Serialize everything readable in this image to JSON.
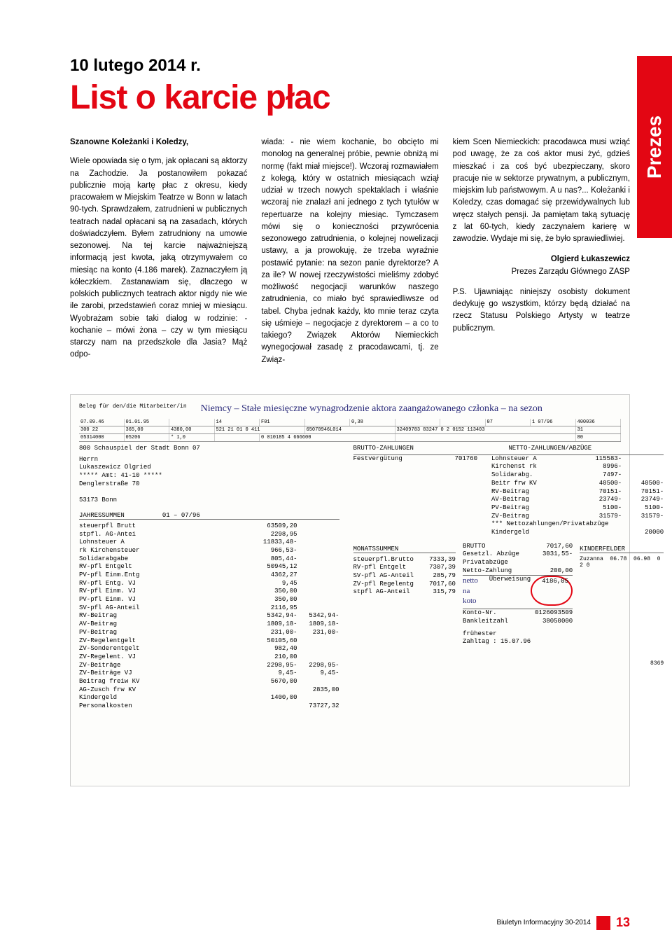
{
  "side_tab": "Prezes",
  "date_line": "10 lutego 2014 r.",
  "main_title": "List o karcie płac",
  "salutation": "Szanowne Koleżanki i Koledzy,",
  "col1_p1": "Wiele opowiada się o tym, jak opłacani są aktorzy na Zachodzie. Ja postanowiłem pokazać publicznie moją kartę płac z okresu, kiedy pracowałem w Miejskim Teatrze w Bonn w latach 90-tych. Sprawdzałem, zatrudnieni w publicznych teatrach nadal opłacani są na zasadach, których doświadczyłem. Byłem zatrudniony na umowie sezonowej. Na tej karcie najważniejszą informacją jest kwota, jaką otrzymywałem co miesiąc na konto (4.186 marek). Zaznaczyłem ją kółeczkiem. Zastanawiam się, dlaczego w polskich publicznych teatrach aktor nigdy nie wie ile zarobi, przedstawień coraz mniej w miesiącu. Wyobrażam sobie taki dialog w rodzinie: - kochanie – mówi żona – czy w tym miesiącu starczy nam na przedszkole dla Jasia? Mąż odpo-",
  "col2_p1": "wiada: - nie wiem kochanie, bo obcięto mi monolog na generalnej próbie, pewnie obniżą mi normę (fakt miał miejsce!). Wczoraj rozmawiałem z kolegą, który w ostatnich miesiącach wziął udział w trzech nowych spektaklach i właśnie wczoraj nie znalazł ani jednego z tych tytułów w repertuarze na kolejny miesiąc. Tymczasem mówi się o konieczności przywrócenia sezonowego zatrudnienia, o kolejnej nowelizacji ustawy, a ja prowokuję, że trzeba wyraźnie postawić pytanie: na sezon panie dyrektorze? A za ile? W nowej rzeczywistości mieliśmy zdobyć możliwość negocjacji warunków naszego zatrudnienia, co miało być sprawiedliwsze od tabel. Chyba jednak każdy, kto mnie teraz czyta się uśmieje – negocjacje z dyrektorem – a co to takiego? Związek Aktorów Niemieckich wynegocjował zasadę z pracodawcami, tj. ze Związ-",
  "col3_p1": "kiem Scen Niemieckich: pracodawca musi wziąć pod uwagę, że za coś aktor musi żyć, gdzieś mieszkać i za coś być ubezpieczany, skoro pracuje nie w sektorze prywatnym, a publicznym, miejskim lub państwowym. A u nas?... Koleżanki i Koledzy, czas domagać się przewidywalnych lub wręcz stałych pensji. Ja pamiętam taką sytuację z lat 60-tych, kiedy zaczynałem karierę w zawodzie. Wydaje mi się, że było sprawiedliwiej.",
  "signature_name": "Olgierd Łukaszewicz",
  "signature_title": "Prezes Zarządu Głównego ZASP",
  "ps": "P.S. Ujawniając niniejszy osobisty dokument dedykuję go wszystkim, którzy będą działać na rzecz Statusu Polskiego Artysty w teatrze publicznym.",
  "payslip": {
    "handwriting": "Niemcy – Stałe miesięczne wynagrodzenie aktora zaangażowanego członka – na sezon",
    "beleg_label": "Beleg für den/die Mitarbeiter/in",
    "header1": {
      "geburtsdatum": "07.09.46",
      "eintritt": "01.01.95",
      "part": "14",
      "f01": "F01",
      "faktor": "0,38",
      "kz": "07",
      "monat": "1 07/96",
      "personal": "400036"
    },
    "header2": {
      "konf": "300 22",
      "monat": "365,00",
      "jahres": "4380,00",
      "schl": "521 21 01 0 411",
      "sozvers": "65070946L014",
      "betrieb": "32409783 83247 0 2 0152 113403",
      "st": "31"
    },
    "header3": {
      "finanzamt": "05314000",
      "steuerklasse": "05206",
      "kinder": "* 1,0",
      "mk": "0 010185 4 666600",
      "sv": "80",
      "zv": "31"
    },
    "employer": "800 Schauspiel der Stadt Bonn    07",
    "brutto_title": "BRUTTO-ZAHLUNGEN",
    "netto_title": "NETTO-ZAHLUNGEN/ABZÜGE",
    "festverguetung_label": "Festvergütung",
    "festverguetung_val": "701760",
    "address": {
      "l1": "Herrn",
      "l2": "Lukaszewicz Olgried",
      "l3": "*****   Amt: 41-10   *****",
      "l4": "Denglerstraße 70",
      "l5": "53173 Bonn"
    },
    "netto_items": [
      {
        "label": "Lohnsteuer A",
        "v1": "115583-"
      },
      {
        "label": "Kirchenst rk",
        "v1": "8996-"
      },
      {
        "label": "Solidarabg.",
        "v1": "7497-"
      },
      {
        "label": "Beitr frw KV",
        "v1": "40500-",
        "v2": "40500-"
      },
      {
        "label": "RV-Beitrag",
        "v1": "70151-",
        "v2": "70151-"
      },
      {
        "label": "AV-Beitrag",
        "v1": "23749-",
        "v2": "23749-"
      },
      {
        "label": "PV-Beitrag",
        "v1": "5100-",
        "v2": "5100-"
      },
      {
        "label": "ZV-Beitrag",
        "v1": "31579-",
        "v2": "31579-"
      }
    ],
    "nettoz_label": "*** Nettozahlungen/Privatabzüge",
    "kindergeld_label": "Kindergeld",
    "kindergeld_val": "20000",
    "jahressummen_title": "JAHRESSUMMEN",
    "jahressummen_period": "01 – 07/96",
    "jahres_items": [
      {
        "label": "steuerpfl Brutt",
        "v1": "63509,20"
      },
      {
        "label": "stpfl. AG-Antei",
        "v1": "2298,95"
      },
      {
        "label": "Lohnsteuer A",
        "v1": "11833,48-"
      },
      {
        "label": "rk Kirchensteuer",
        "v1": "966,53-"
      },
      {
        "label": "Solidarabgabe",
        "v1": "805,44-"
      },
      {
        "label": "RV-pfl Entgelt",
        "v1": "50945,12"
      },
      {
        "label": "PV-pfl Einm.Entg",
        "v1": "4362,27"
      },
      {
        "label": "RV-pfl Entg. VJ",
        "v1": "9,45"
      },
      {
        "label": "RV-pfl Einm. VJ",
        "v1": "350,00"
      },
      {
        "label": "PV-pfl Einm. VJ",
        "v1": "350,00"
      },
      {
        "label": "SV-pfl AG-Anteil",
        "v1": "2116,95"
      },
      {
        "label": "RV-Beitrag",
        "v1": "5342,94-",
        "v2": "5342,94-"
      },
      {
        "label": "AV-Beitrag",
        "v1": "1809,18-",
        "v2": "1809,18-"
      },
      {
        "label": "PV-Beitrag",
        "v1": "231,00-",
        "v2": "231,00-"
      },
      {
        "label": "ZV-Regelentgelt",
        "v1": "50105,60"
      },
      {
        "label": "ZV-Sonderentgelt",
        "v1": "982,40"
      },
      {
        "label": "ZV-Regelent. VJ",
        "v1": "210,00"
      },
      {
        "label": "ZV-Beiträge",
        "v1": "2298,95-",
        "v2": "2298,95-"
      },
      {
        "label": "ZV-Beiträge VJ",
        "v1": "9,45-",
        "v2": "9,45-"
      },
      {
        "label": "Beitrag freiw KV",
        "v1": "5670,00"
      },
      {
        "label": "AG-Zusch frw KV",
        "v1": "",
        "v2": "2835,00"
      },
      {
        "label": "Kindergeld",
        "v1": "1400,00"
      },
      {
        "label": "Personalkosten",
        "v1": "",
        "v2": "73727,32"
      }
    ],
    "monatssummen_title": "MONATSSUMMEN",
    "monat_items": [
      {
        "label": "steuerpfl.Brutto",
        "v": "7333,39"
      },
      {
        "label": "RV-pfl Entgelt",
        "v": "7307,39"
      },
      {
        "label": "SV-pfl AG-Anteil",
        "v": "285,79"
      },
      {
        "label": "ZV-pfl Regelentg",
        "v": "7017,60"
      },
      {
        "label": "stpfl AG-Anteil",
        "v": "315,79"
      }
    ],
    "brutto_label": "BRUTTO",
    "brutto_val": "7017,60",
    "gesetzl_label": "Gesetzl. Abzüge",
    "gesetzl_val": "3031,55-",
    "privat_label": "Privatabzüge",
    "nettoz_val_label": "Netto-Zahlung",
    "nettoz_val": "200,00",
    "uberweisung_label": "Überweisung",
    "uberweisung_val": "4186,05",
    "handwrite2": "netto na koto",
    "konto_label": "Konto-Nr.",
    "konto_val": "0126093509",
    "bank_label": "Bankleitzahl",
    "bank_val": "38050000",
    "zahltag_label": "frühester",
    "zahltag": "Zahltag : 15.07.96",
    "kinderfelder_title": "KINDERFELDER",
    "kind_name": "Zuzanna",
    "kind_geb": "06.78",
    "kind_ausl": "06.98",
    "kind_kg": "0 2 0",
    "bottom_code": "8369"
  },
  "footer_text": "Biuletyn Informacyjny 30-2014",
  "footer_page": "13"
}
